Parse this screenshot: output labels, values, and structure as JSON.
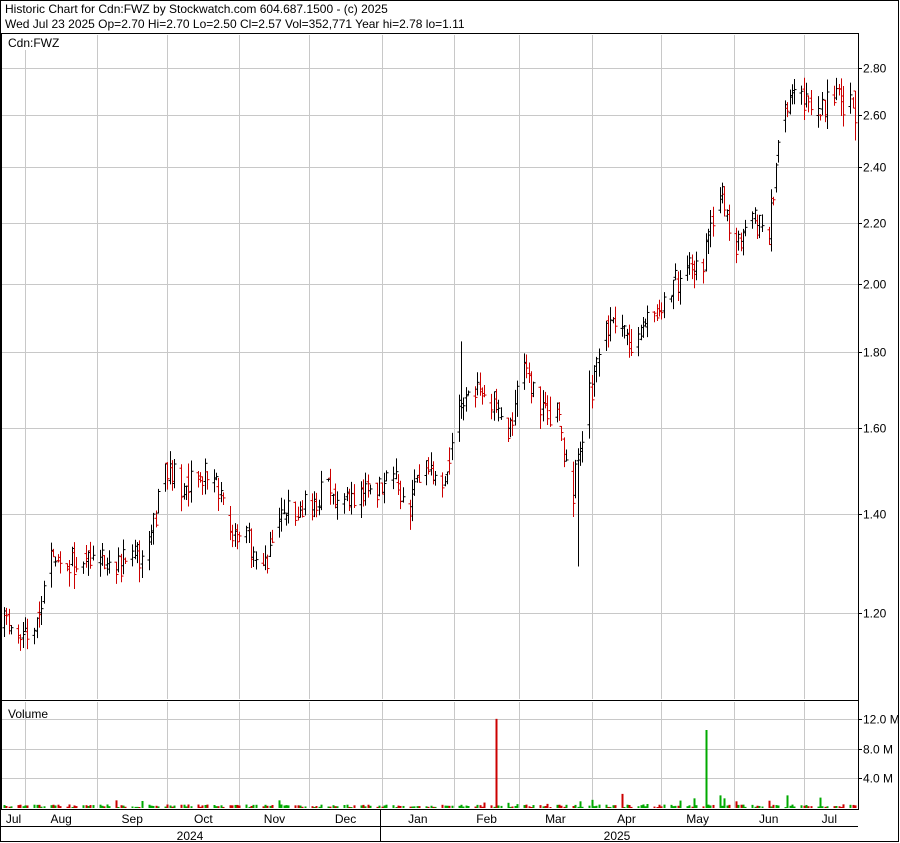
{
  "header": {
    "line1": "Historic Chart for Cdn:FWZ by Stockwatch.com 604.687.1500 - (c) 2025",
    "line2": "Wed Jul 23 2025  Op=2.70  Hi=2.70  Lo=2.50  Cl=2.57  Vol=352,771  Year hi=2.78  lo=1.11"
  },
  "colors": {
    "up": "#000000",
    "down": "#cc0000",
    "vol_up": "#00aa00",
    "vol_down": "#cc0000",
    "grid": "#c8c8c8"
  },
  "chart_data": [
    {
      "type": "ohlc",
      "panel_label": "Cdn:FWZ",
      "y_scale": "log",
      "ylim": [
        1.05,
        2.95
      ],
      "yticks": [
        1.2,
        1.4,
        1.6,
        1.8,
        2.0,
        2.2,
        2.4,
        2.6,
        2.8
      ],
      "ytick_labels": [
        "1.20",
        "1.40",
        "1.60",
        "1.80",
        "2.00",
        "2.20",
        "2.40",
        "2.60",
        "2.80"
      ],
      "x_start": "2024-07-23",
      "x_end": "2025-07-23",
      "anchors": [
        [
          "2024-07-23",
          1.18
        ],
        [
          "2024-07-29",
          1.16
        ],
        [
          "2024-08-05",
          1.15
        ],
        [
          "2024-08-12",
          1.31
        ],
        [
          "2024-08-19",
          1.29
        ],
        [
          "2024-08-26",
          1.32
        ],
        [
          "2024-09-02",
          1.3
        ],
        [
          "2024-09-09",
          1.3
        ],
        [
          "2024-09-16",
          1.3
        ],
        [
          "2024-09-23",
          1.32
        ],
        [
          "2024-09-30",
          1.52
        ],
        [
          "2024-10-07",
          1.46
        ],
        [
          "2024-10-14",
          1.5
        ],
        [
          "2024-10-21",
          1.48
        ],
        [
          "2024-10-28",
          1.36
        ],
        [
          "2024-11-04",
          1.36
        ],
        [
          "2024-11-11",
          1.27
        ],
        [
          "2024-11-18",
          1.4
        ],
        [
          "2024-11-25",
          1.4
        ],
        [
          "2024-12-02",
          1.42
        ],
        [
          "2024-12-09",
          1.46
        ],
        [
          "2024-12-16",
          1.42
        ],
        [
          "2024-12-23",
          1.44
        ],
        [
          "2025-01-06",
          1.48
        ],
        [
          "2025-01-13",
          1.42
        ],
        [
          "2025-01-20",
          1.5
        ],
        [
          "2025-01-27",
          1.46
        ],
        [
          "2025-02-03",
          1.66
        ],
        [
          "2025-02-10",
          1.7
        ],
        [
          "2025-02-17",
          1.67
        ],
        [
          "2025-02-24",
          1.6
        ],
        [
          "2025-03-03",
          1.74
        ],
        [
          "2025-03-10",
          1.66
        ],
        [
          "2025-03-17",
          1.63
        ],
        [
          "2025-03-24",
          1.45
        ],
        [
          "2025-03-31",
          1.68
        ],
        [
          "2025-04-07",
          1.88
        ],
        [
          "2025-04-14",
          1.85
        ],
        [
          "2025-04-21",
          1.82
        ],
        [
          "2025-04-28",
          1.92
        ],
        [
          "2025-05-05",
          1.98
        ],
        [
          "2025-05-12",
          2.05
        ],
        [
          "2025-05-19",
          2.07
        ],
        [
          "2025-05-26",
          2.3
        ],
        [
          "2025-06-02",
          2.14
        ],
        [
          "2025-06-09",
          2.22
        ],
        [
          "2025-06-16",
          2.15
        ],
        [
          "2025-06-23",
          2.66
        ],
        [
          "2025-06-30",
          2.68
        ],
        [
          "2025-07-07",
          2.62
        ],
        [
          "2025-07-14",
          2.66
        ],
        [
          "2025-07-22",
          2.64
        ],
        [
          "2025-07-23",
          2.57
        ]
      ],
      "spikes": [
        [
          "2025-03-26",
          1.29,
          1.55
        ],
        [
          "2025-02-04",
          1.64,
          1.83
        ]
      ],
      "last_bar": {
        "date": "2025-07-23",
        "open": 2.7,
        "high": 2.7,
        "low": 2.5,
        "close": 2.57
      }
    },
    {
      "type": "bar",
      "panel_label": "Volume",
      "ylim": [
        0,
        14000000
      ],
      "yticks": [
        4000000,
        8000000,
        12000000
      ],
      "ytick_labels": [
        "4.0 M",
        "8.0 M",
        "12.0 M"
      ],
      "base": 300000,
      "spikes": [
        [
          "2025-02-19",
          12000000,
          "down"
        ],
        [
          "2025-05-20",
          10500000,
          "up"
        ],
        [
          "2025-04-14",
          1900000,
          "down"
        ],
        [
          "2025-05-26",
          1700000,
          "up"
        ],
        [
          "2025-05-28",
          1300000,
          "up"
        ],
        [
          "2025-06-24",
          1700000,
          "up"
        ],
        [
          "2025-07-08",
          1400000,
          "up"
        ],
        [
          "2025-05-15",
          1300000,
          "up"
        ],
        [
          "2025-04-01",
          1100000,
          "up"
        ],
        [
          "2025-03-27",
          900000,
          "up"
        ],
        [
          "2025-05-09",
          1000000,
          "up"
        ],
        [
          "2025-06-02",
          900000,
          "down"
        ],
        [
          "2025-02-24",
          700000,
          "up"
        ],
        [
          "2025-07-23",
          352771,
          "down"
        ]
      ]
    }
  ],
  "axis": {
    "months": [
      "Jul",
      "Aug",
      "Sep",
      "Oct",
      "Nov",
      "Dec",
      "Jan",
      "Feb",
      "Mar",
      "Apr",
      "May",
      "Jun",
      "Jul"
    ],
    "month_dates": [
      "2024-07-01",
      "2024-08-01",
      "2024-09-01",
      "2024-10-01",
      "2024-11-01",
      "2024-12-01",
      "2025-01-01",
      "2025-02-01",
      "2025-03-01",
      "2025-04-01",
      "2025-05-01",
      "2025-06-01",
      "2025-07-01"
    ],
    "years": [
      "2024",
      "2025"
    ]
  }
}
